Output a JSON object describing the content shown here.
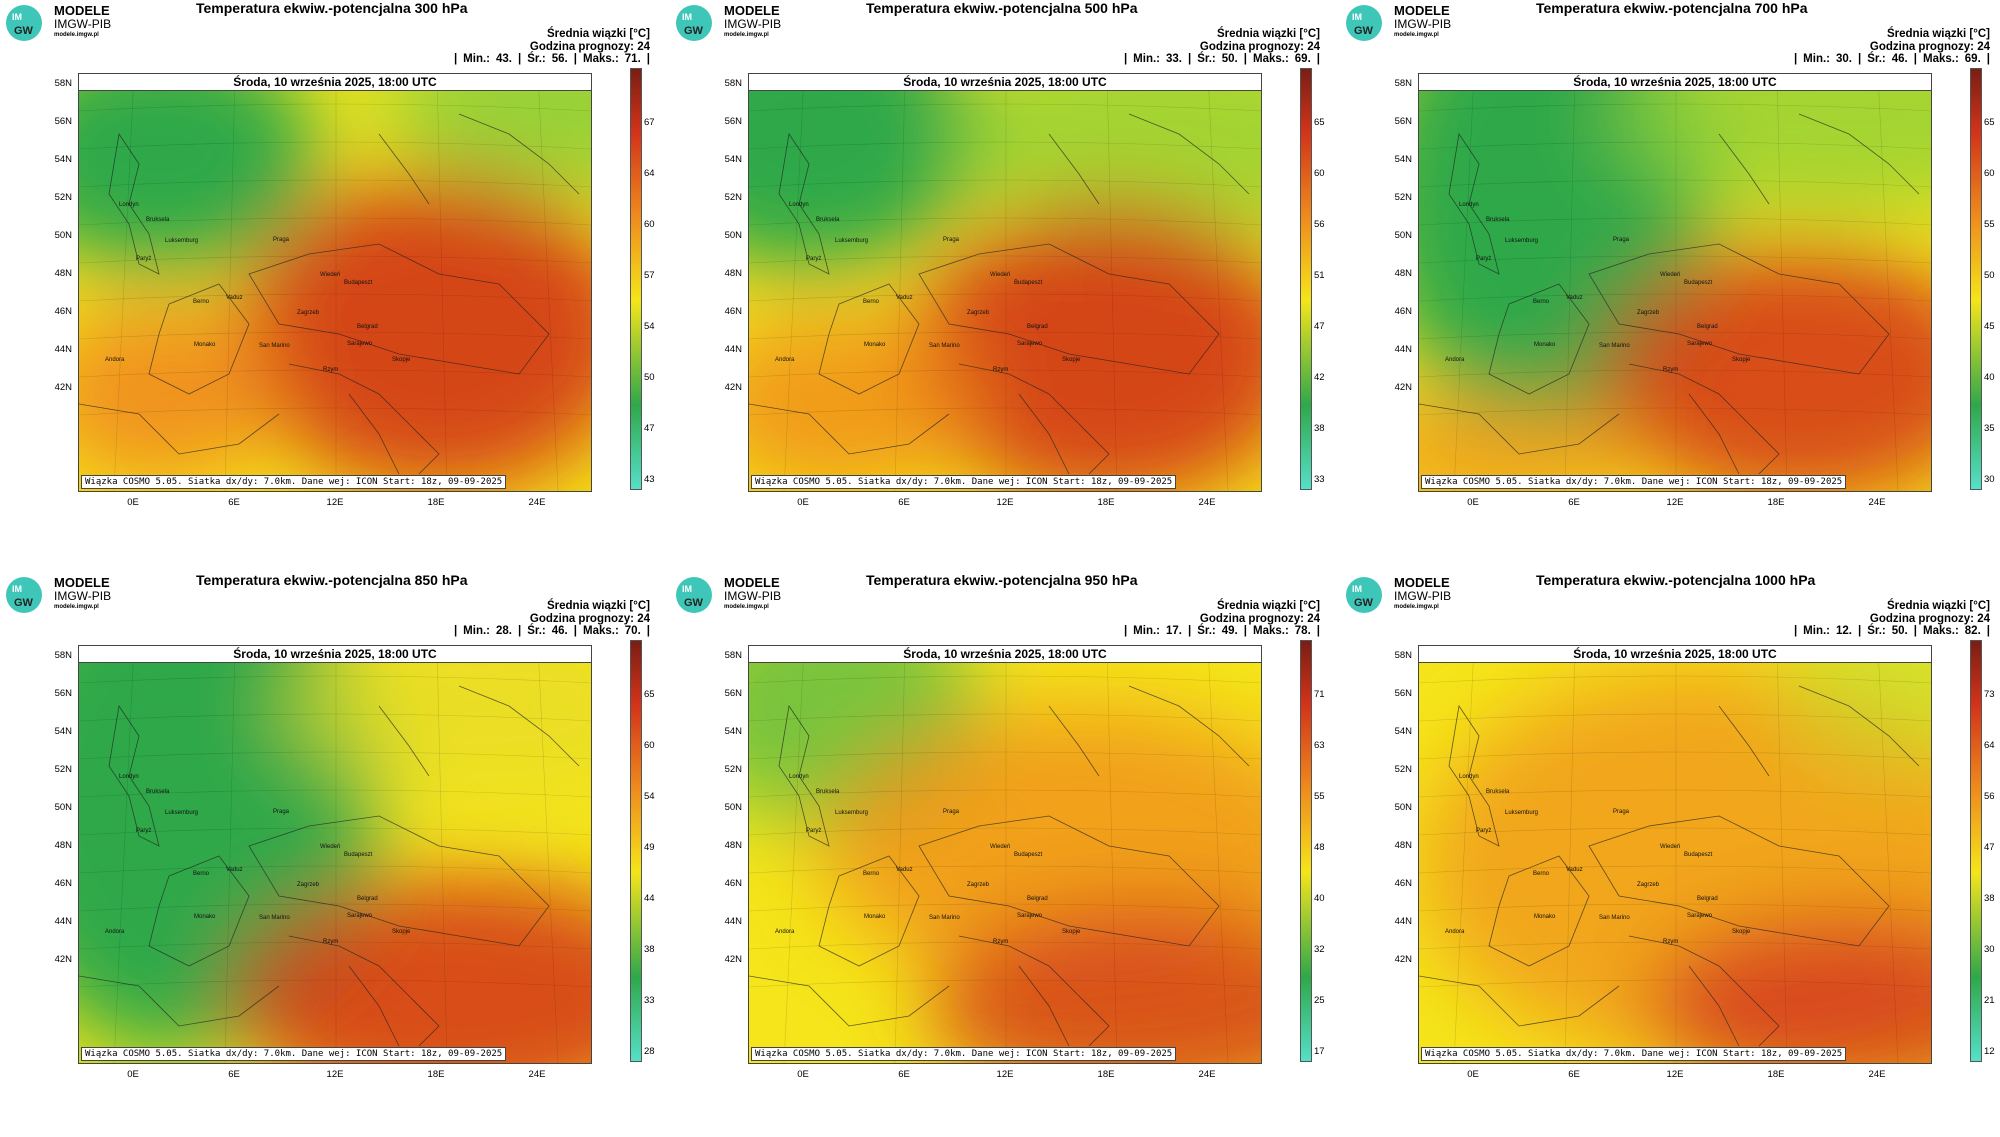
{
  "brand": {
    "line1": "MODELE",
    "line2": "IMGW-PIB",
    "line3": "modele.imgw.pl",
    "logo_top": "IM",
    "logo_bottom": "GW"
  },
  "labels": {
    "info_title": "Średnia wiązki [°C]",
    "forecast_hour": "Godzina prognozy: 24",
    "date": "Środa, 10 września 2025, 18:00 UTC",
    "footer": "Wiązka COSMO 5.05. Siatka dx/dy: 7.0km. Dane wej: ICON Start: 18z, 09-09-2025"
  },
  "lat_labels": [
    "58N",
    "56N",
    "54N",
    "52N",
    "50N",
    "48N",
    "46N",
    "44N",
    "42N"
  ],
  "lon_labels": [
    "0E",
    "6E",
    "12E",
    "18E",
    "24E"
  ],
  "cities": [
    "Londyn",
    "Bruksela",
    "Luksemburg",
    "Paryż",
    "Praga",
    "Wiedeń",
    "Budapeszt",
    "Berno",
    "Vaduz",
    "Zagrzeb",
    "Belgrad",
    "Sarajewo",
    "San Marino",
    "Monako",
    "Andora",
    "Skopje",
    "Rzym"
  ],
  "panels": [
    {
      "title": "Temperatura ekwiw.-potencjalna 300 hPa",
      "min": "43.",
      "avg": "56.",
      "max": "71.",
      "scale": [
        "67",
        "64",
        "60",
        "57",
        "54",
        "50",
        "47",
        "43"
      ]
    },
    {
      "title": "Temperatura ekwiw.-potencjalna 500 hPa",
      "min": "33.",
      "avg": "50.",
      "max": "69.",
      "scale": [
        "65",
        "60",
        "56",
        "51",
        "47",
        "42",
        "38",
        "33"
      ]
    },
    {
      "title": "Temperatura ekwiw.-potencjalna 700 hPa",
      "min": "30.",
      "avg": "46.",
      "max": "69.",
      "scale": [
        "65",
        "60",
        "55",
        "50",
        "45",
        "40",
        "35",
        "30"
      ]
    },
    {
      "title": "Temperatura ekwiw.-potencjalna 850 hPa",
      "min": "28.",
      "avg": "46.",
      "max": "70.",
      "scale": [
        "65",
        "60",
        "54",
        "49",
        "44",
        "38",
        "33",
        "28"
      ]
    },
    {
      "title": "Temperatura ekwiw.-potencjalna 950 hPa",
      "min": "17.",
      "avg": "49.",
      "max": "78.",
      "scale": [
        "71",
        "63",
        "55",
        "48",
        "40",
        "32",
        "25",
        "17"
      ]
    },
    {
      "title": "Temperatura ekwiw.-potencjalna 1000 hPa",
      "min": "12.",
      "avg": "50.",
      "max": "82.",
      "scale": [
        "73",
        "64",
        "56",
        "47",
        "38",
        "30",
        "21",
        "12"
      ]
    }
  ],
  "stats_labels": {
    "min": "Min.:",
    "avg": "Śr.:",
    "max": "Maks.:"
  },
  "colors": {
    "green": "#2fa84a",
    "yellow": "#f5e51a",
    "orange": "#ef8a1c",
    "red": "#d2331a",
    "darkred": "#7a1e14"
  }
}
